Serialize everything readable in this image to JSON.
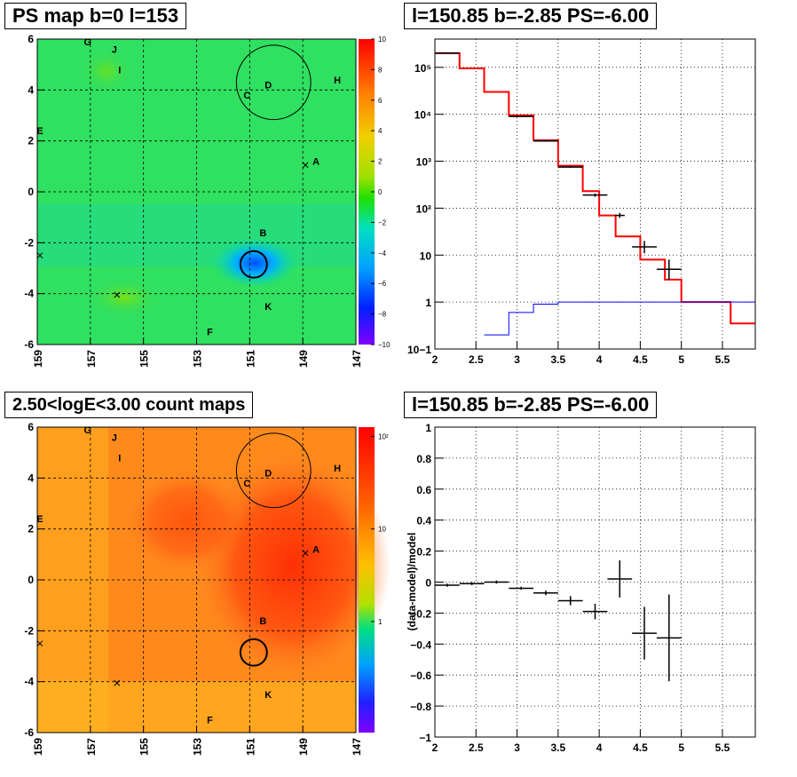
{
  "titles": {
    "ps_map": "PS map b=0 l=153",
    "spectrum": "l=150.85 b=-2.85 PS=-6.00",
    "count_map": "2.50<logE<3.00 count maps",
    "residual": "l=150.85 b=-2.85 PS=-6.00"
  },
  "chart_data": [
    {
      "id": "ps_map",
      "type": "heatmap",
      "title": "PS map b=0 l=153",
      "x_ticks": [
        "159",
        "157",
        "155",
        "153",
        "151",
        "149",
        "147"
      ],
      "y_ticks": [
        "6",
        "4",
        "2",
        "0",
        "-2",
        "-4",
        "-6"
      ],
      "xlim": [
        159,
        147
      ],
      "ylim": [
        -6,
        6
      ],
      "colorbar_ticks": [
        "10",
        "8",
        "6",
        "4",
        "2",
        "0",
        "−2",
        "−4",
        "−6",
        "−8",
        "−10"
      ],
      "zlim": [
        -10,
        10
      ],
      "grid": true,
      "sources": [
        {
          "label": "A",
          "l": 148.5,
          "b": 1.2
        },
        {
          "label": "B",
          "l": 150.5,
          "b": -1.6
        },
        {
          "label": "C",
          "l": 151.1,
          "b": 3.8
        },
        {
          "label": "D",
          "l": 150.3,
          "b": 4.2
        },
        {
          "label": "E",
          "l": 158.9,
          "b": 2.4
        },
        {
          "label": "F",
          "l": 152.5,
          "b": -5.5
        },
        {
          "label": "G",
          "l": 157.1,
          "b": 5.9
        },
        {
          "label": "H",
          "l": 147.7,
          "b": 4.4
        },
        {
          "label": "I",
          "l": 155.9,
          "b": 4.8
        },
        {
          "label": "J",
          "l": 156.1,
          "b": 5.6
        },
        {
          "label": "K",
          "l": 150.3,
          "b": -4.5
        }
      ],
      "cross_markers": [
        {
          "l": 148.9,
          "b": 1.05
        },
        {
          "l": 158.9,
          "b": -2.5
        },
        {
          "l": 156.0,
          "b": -4.05
        }
      ],
      "circles": [
        {
          "l": 150.1,
          "b": 4.3,
          "r": 1.4
        },
        {
          "l": 150.85,
          "b": -2.85,
          "r": 0.5
        }
      ]
    },
    {
      "id": "spectrum",
      "type": "line",
      "title": "l=150.85 b=-2.85 PS=-6.00",
      "xlabel": "",
      "ylabel": "",
      "log_y": true,
      "xlim": [
        2,
        5.9
      ],
      "ylim": [
        0.1,
        400000
      ],
      "x_ticks": [
        "2",
        "2.5",
        "3",
        "3.5",
        "4",
        "4.5",
        "5",
        "5.5"
      ],
      "y_ticks": [
        "10−1",
        "1",
        "10",
        "10²",
        "10³",
        "10⁴",
        "10⁵"
      ],
      "grid": true,
      "series": [
        {
          "color": "#ff0000",
          "bins": [
            [
              2.0,
              2.3,
              200000
            ],
            [
              2.3,
              2.6,
              95000
            ],
            [
              2.6,
              2.9,
              30000
            ],
            [
              2.9,
              3.2,
              9500
            ],
            [
              3.2,
              3.5,
              2800
            ],
            [
              3.5,
              3.8,
              800
            ],
            [
              3.8,
              4.0,
              230
            ],
            [
              4.0,
              4.2,
              70
            ],
            [
              4.2,
              4.5,
              25
            ],
            [
              4.5,
              4.8,
              8
            ],
            [
              4.8,
              5.0,
              3
            ],
            [
              5.0,
              5.3,
              1
            ],
            [
              5.3,
              5.6,
              1
            ],
            [
              5.6,
              5.9,
              0.35
            ]
          ]
        },
        {
          "color": "#0000ff",
          "bins": [
            [
              2.6,
              2.9,
              0.2
            ],
            [
              2.9,
              3.2,
              0.6
            ],
            [
              3.2,
              3.5,
              0.9
            ],
            [
              3.5,
              3.8,
              1
            ],
            [
              3.8,
              5.9,
              1
            ]
          ]
        }
      ],
      "data_points": [
        {
          "x": 2.15,
          "xerr": 0.15,
          "y": 200000,
          "ylo": 195000,
          "yhi": 205000
        },
        {
          "x": 3.05,
          "xerr": 0.15,
          "y": 9000,
          "ylo": 8800,
          "yhi": 9200
        },
        {
          "x": 3.35,
          "xerr": 0.15,
          "y": 2700,
          "ylo": 2600,
          "yhi": 2800
        },
        {
          "x": 3.65,
          "xerr": 0.15,
          "y": 750,
          "ylo": 720,
          "yhi": 780
        },
        {
          "x": 3.95,
          "xerr": 0.15,
          "y": 190,
          "ylo": 175,
          "yhi": 205
        },
        {
          "x": 4.25,
          "xerr": 0.06,
          "y": 70,
          "ylo": 62,
          "yhi": 79
        },
        {
          "x": 4.55,
          "xerr": 0.15,
          "y": 15,
          "ylo": 11,
          "yhi": 20
        },
        {
          "x": 4.85,
          "xerr": 0.15,
          "y": 5,
          "ylo": 3,
          "yhi": 8
        }
      ]
    },
    {
      "id": "count_map",
      "type": "heatmap",
      "title": "2.50<logE<3.00 count maps",
      "x_ticks": [
        "159",
        "157",
        "155",
        "153",
        "151",
        "149",
        "147"
      ],
      "y_ticks": [
        "6",
        "4",
        "2",
        "0",
        "-2",
        "-4",
        "-6"
      ],
      "xlim": [
        159,
        147
      ],
      "ylim": [
        -6,
        6
      ],
      "log_z": true,
      "colorbar_ticks": [
        "10²",
        "10",
        "1"
      ],
      "grid": true,
      "circles": [
        {
          "l": 150.1,
          "b": 4.3,
          "r": 1.4
        },
        {
          "l": 150.85,
          "b": -2.85,
          "r": 0.5
        }
      ]
    },
    {
      "id": "residual",
      "type": "scatter",
      "title": "l=150.85 b=-2.85 PS=-6.00",
      "xlabel": "",
      "ylabel": "(data-model)/model",
      "xlim": [
        2,
        5.9
      ],
      "ylim": [
        -1,
        1
      ],
      "x_ticks": [
        "2",
        "2.5",
        "3",
        "3.5",
        "4",
        "4.5",
        "5",
        "5.5"
      ],
      "y_ticks": [
        "1",
        "0.8",
        "0.6",
        "0.4",
        "0.2",
        "0",
        "−0.2",
        "−0.4",
        "−0.6",
        "−0.8",
        "−1"
      ],
      "grid": true,
      "data_points": [
        {
          "x": 2.15,
          "xerr": 0.15,
          "y": -0.02,
          "yerr": 0.01
        },
        {
          "x": 2.45,
          "xerr": 0.15,
          "y": -0.01,
          "yerr": 0.01
        },
        {
          "x": 2.75,
          "xerr": 0.15,
          "y": 0.0,
          "yerr": 0.01
        },
        {
          "x": 3.05,
          "xerr": 0.15,
          "y": -0.04,
          "yerr": 0.01
        },
        {
          "x": 3.35,
          "xerr": 0.15,
          "y": -0.07,
          "yerr": 0.015
        },
        {
          "x": 3.65,
          "xerr": 0.15,
          "y": -0.12,
          "yerr": 0.03
        },
        {
          "x": 3.95,
          "xerr": 0.15,
          "y": -0.19,
          "yerr": 0.05
        },
        {
          "x": 4.25,
          "xerr": 0.15,
          "y": 0.02,
          "yerr": 0.12
        },
        {
          "x": 4.55,
          "xerr": 0.15,
          "y": -0.33,
          "yerr": 0.17
        },
        {
          "x": 4.85,
          "xerr": 0.15,
          "y": -0.36,
          "yerr": 0.28
        }
      ]
    }
  ],
  "colors": {
    "frame": "#000000",
    "grid": "#000000",
    "spectrum_model": "#ff0000",
    "spectrum_bg": "#0000ff"
  }
}
